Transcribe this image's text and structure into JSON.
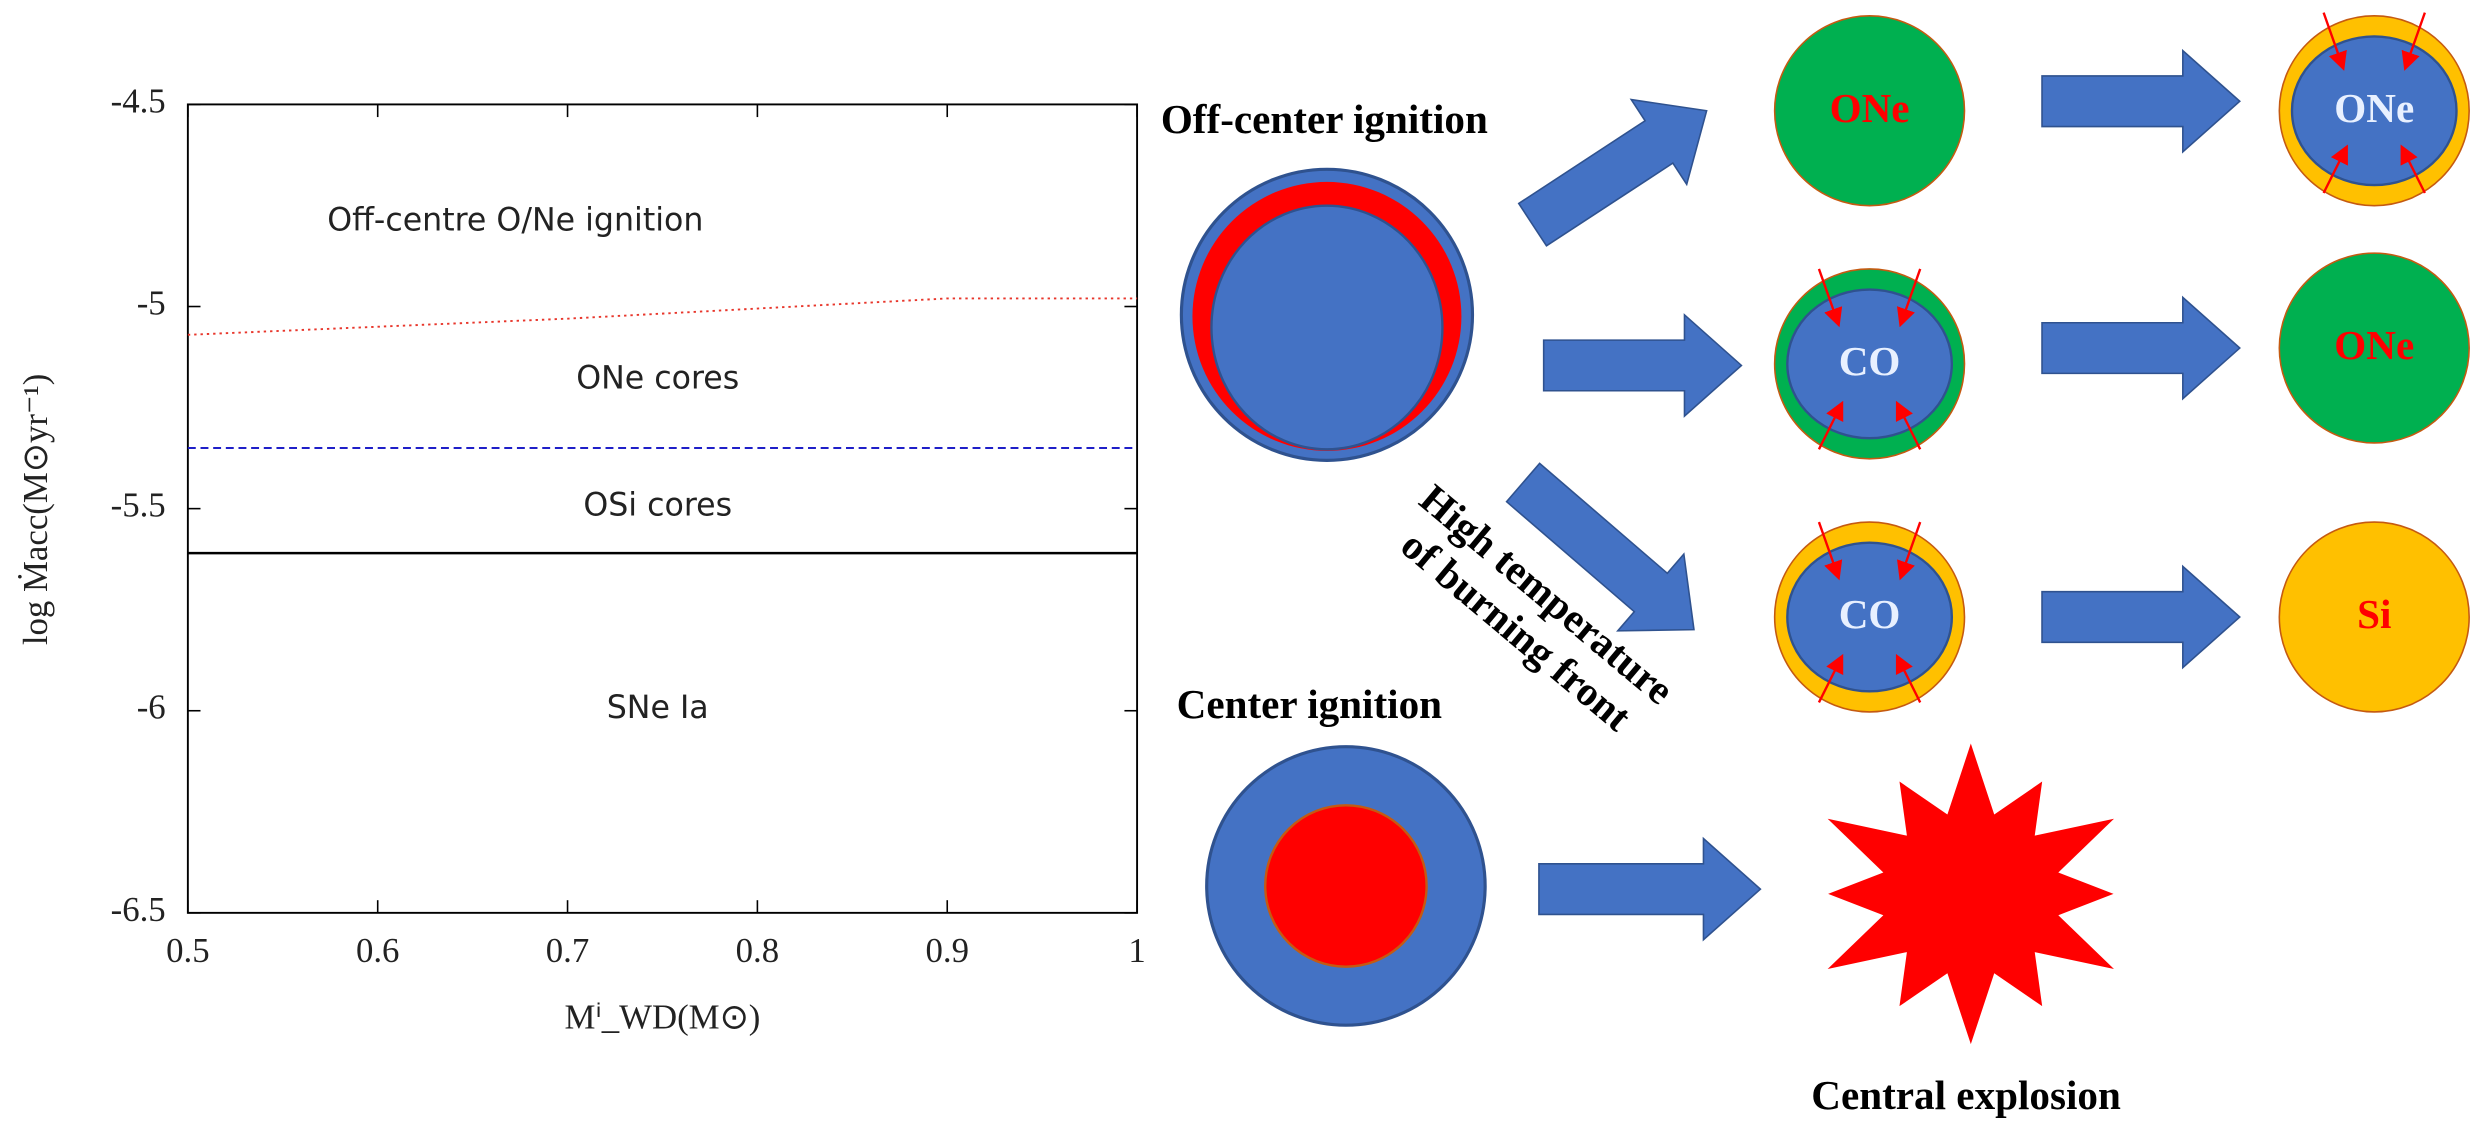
{
  "chart_data": {
    "type": "line",
    "x": [
      0.5,
      0.6,
      0.7,
      0.8,
      0.9,
      1
    ],
    "series": [
      {
        "color": "#e8362b",
        "style": "dotted",
        "values": [
          -5.07,
          -5.05,
          -5.03,
          -5.005,
          -4.98,
          -4.98
        ]
      },
      {
        "color": "#1f1fc8",
        "style": "dashed",
        "values": [
          -5.35,
          -5.35,
          -5.35,
          -5.35,
          -5.35,
          -5.35
        ]
      },
      {
        "color": "#000000",
        "style": "solid",
        "values": [
          -5.61,
          -5.61,
          -5.61,
          -5.61,
          -5.61,
          -5.61
        ]
      }
    ],
    "xlim": [
      0.5,
      1
    ],
    "ylim": [
      -6.5,
      -4.5
    ],
    "xticks": [
      0.5,
      0.6,
      0.7,
      0.8,
      0.9,
      1
    ],
    "yticks": [
      -4.5,
      -5,
      -5.5,
      -6,
      -6.5
    ],
    "xlabel": "Mⁱ_WD(M⊙)",
    "ylabel": "log Ṁacc(M⊙yr⁻¹)",
    "annotations": [
      "Off-centre O/Ne ignition",
      "ONe cores",
      "OSi cores",
      "SNe Ia"
    ],
    "grid": false
  },
  "diagram": {
    "off_center": "Off-center ignition",
    "center": "Center ignition",
    "burning_1": "High temperature",
    "burning_2": "of burning front",
    "explosion": "Central explosion",
    "circles": [
      "ONe",
      "ONe",
      "CO",
      "ONe",
      "CO",
      "Si"
    ]
  }
}
